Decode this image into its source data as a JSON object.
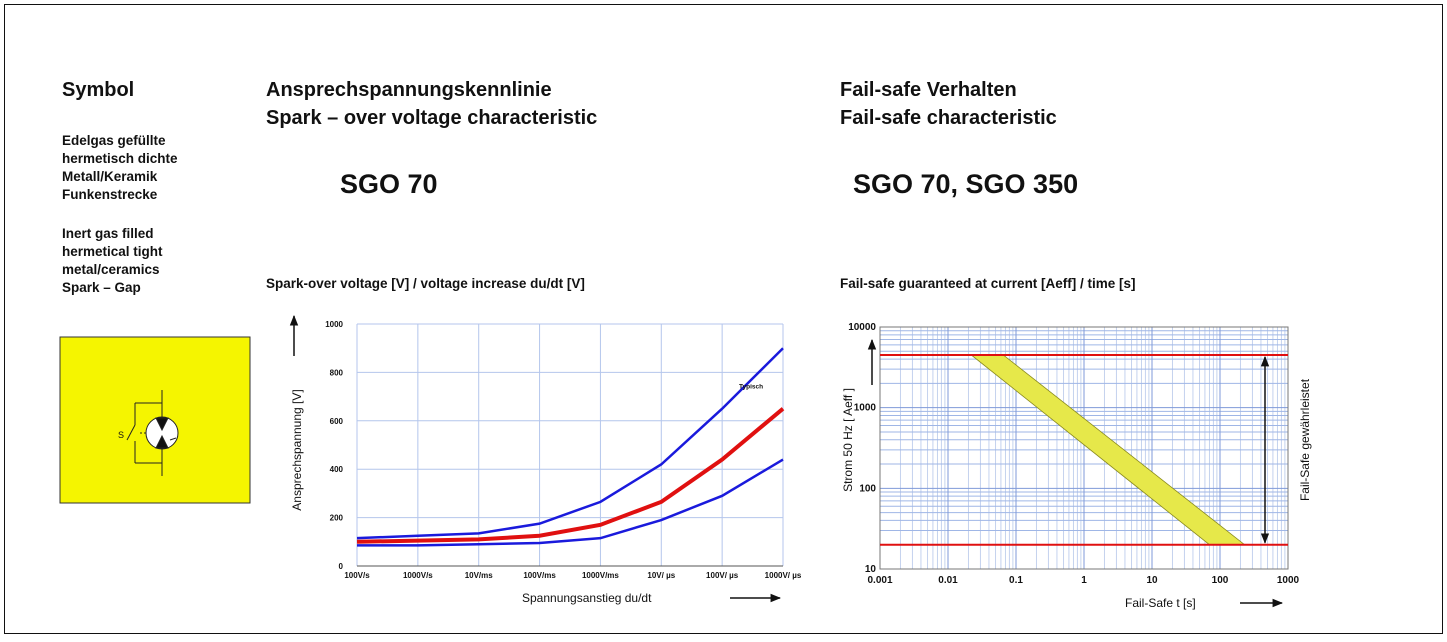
{
  "left": {
    "title": "Symbol",
    "german": [
      "Edelgas gefüllte",
      "hermetisch dichte",
      "Metall/Keramik",
      "Funkenstrecke"
    ],
    "english": [
      "Inert gas filled",
      "hermetical tight",
      "metal/ceramics",
      "Spark – Gap"
    ],
    "symbol_label": "S"
  },
  "middle": {
    "heading": [
      "Ansprechspannungskennlinie",
      "Spark – over voltage characteristic"
    ],
    "model": "SGO 70"
  },
  "right": {
    "heading": [
      "Fail-safe Verhalten",
      "Fail-safe characteristic"
    ],
    "model": "SGO 70, SGO 350"
  },
  "chart_data": [
    {
      "type": "line",
      "title": "Spark-over voltage [V]  /  voltage increase du/dt [V]",
      "x_label": "Spannungsanstieg  du/dt",
      "y_label": "Ansprechspannung  [V]",
      "categories": [
        "100V/s",
        "1000V/s",
        "10V/ms",
        "100V/ms",
        "1000V/ms",
        "10V/ µs",
        "100V/ µs",
        "1000V/ µs"
      ],
      "series": [
        {
          "color": "#1a1adc",
          "values": [
            115,
            125,
            135,
            175,
            265,
            420,
            650,
            900
          ]
        },
        {
          "color": "#e01010",
          "values": [
            100,
            105,
            110,
            125,
            170,
            265,
            440,
            650
          ]
        },
        {
          "color": "#1a1adc",
          "values": [
            85,
            85,
            90,
            95,
            115,
            190,
            290,
            440
          ]
        }
      ],
      "annotation": "Typisch",
      "ylim": [
        0,
        1000
      ],
      "yticks": [
        0,
        200,
        400,
        600,
        800,
        1000
      ],
      "grid": true
    },
    {
      "type": "band",
      "title": "Fail-safe guaranteed at current [Aeff] / time [s]",
      "x_label": "Fail-Safe  t  [s]",
      "y_label": "Strom 50 Hz  [ Aeff ]",
      "right_label": "Fail-Safe  gewährleistet",
      "series": [
        {
          "x": [
            0.022,
            70
          ],
          "y": [
            4500,
            20
          ]
        },
        {
          "x": [
            0.065,
            230
          ],
          "y": [
            4500,
            20
          ]
        }
      ],
      "fill": "#e6e84a",
      "hlines": [
        4500,
        20
      ],
      "hline_color": "#e01010",
      "xlim": [
        0.001,
        1000
      ],
      "xticks": [
        0.001,
        0.01,
        0.1,
        1,
        10,
        100,
        1000
      ],
      "ylim": [
        10,
        10000
      ],
      "yticks": [
        10,
        100,
        1000,
        10000
      ],
      "xscale": "log",
      "yscale": "log",
      "grid": true,
      "minor_grid": true
    }
  ]
}
